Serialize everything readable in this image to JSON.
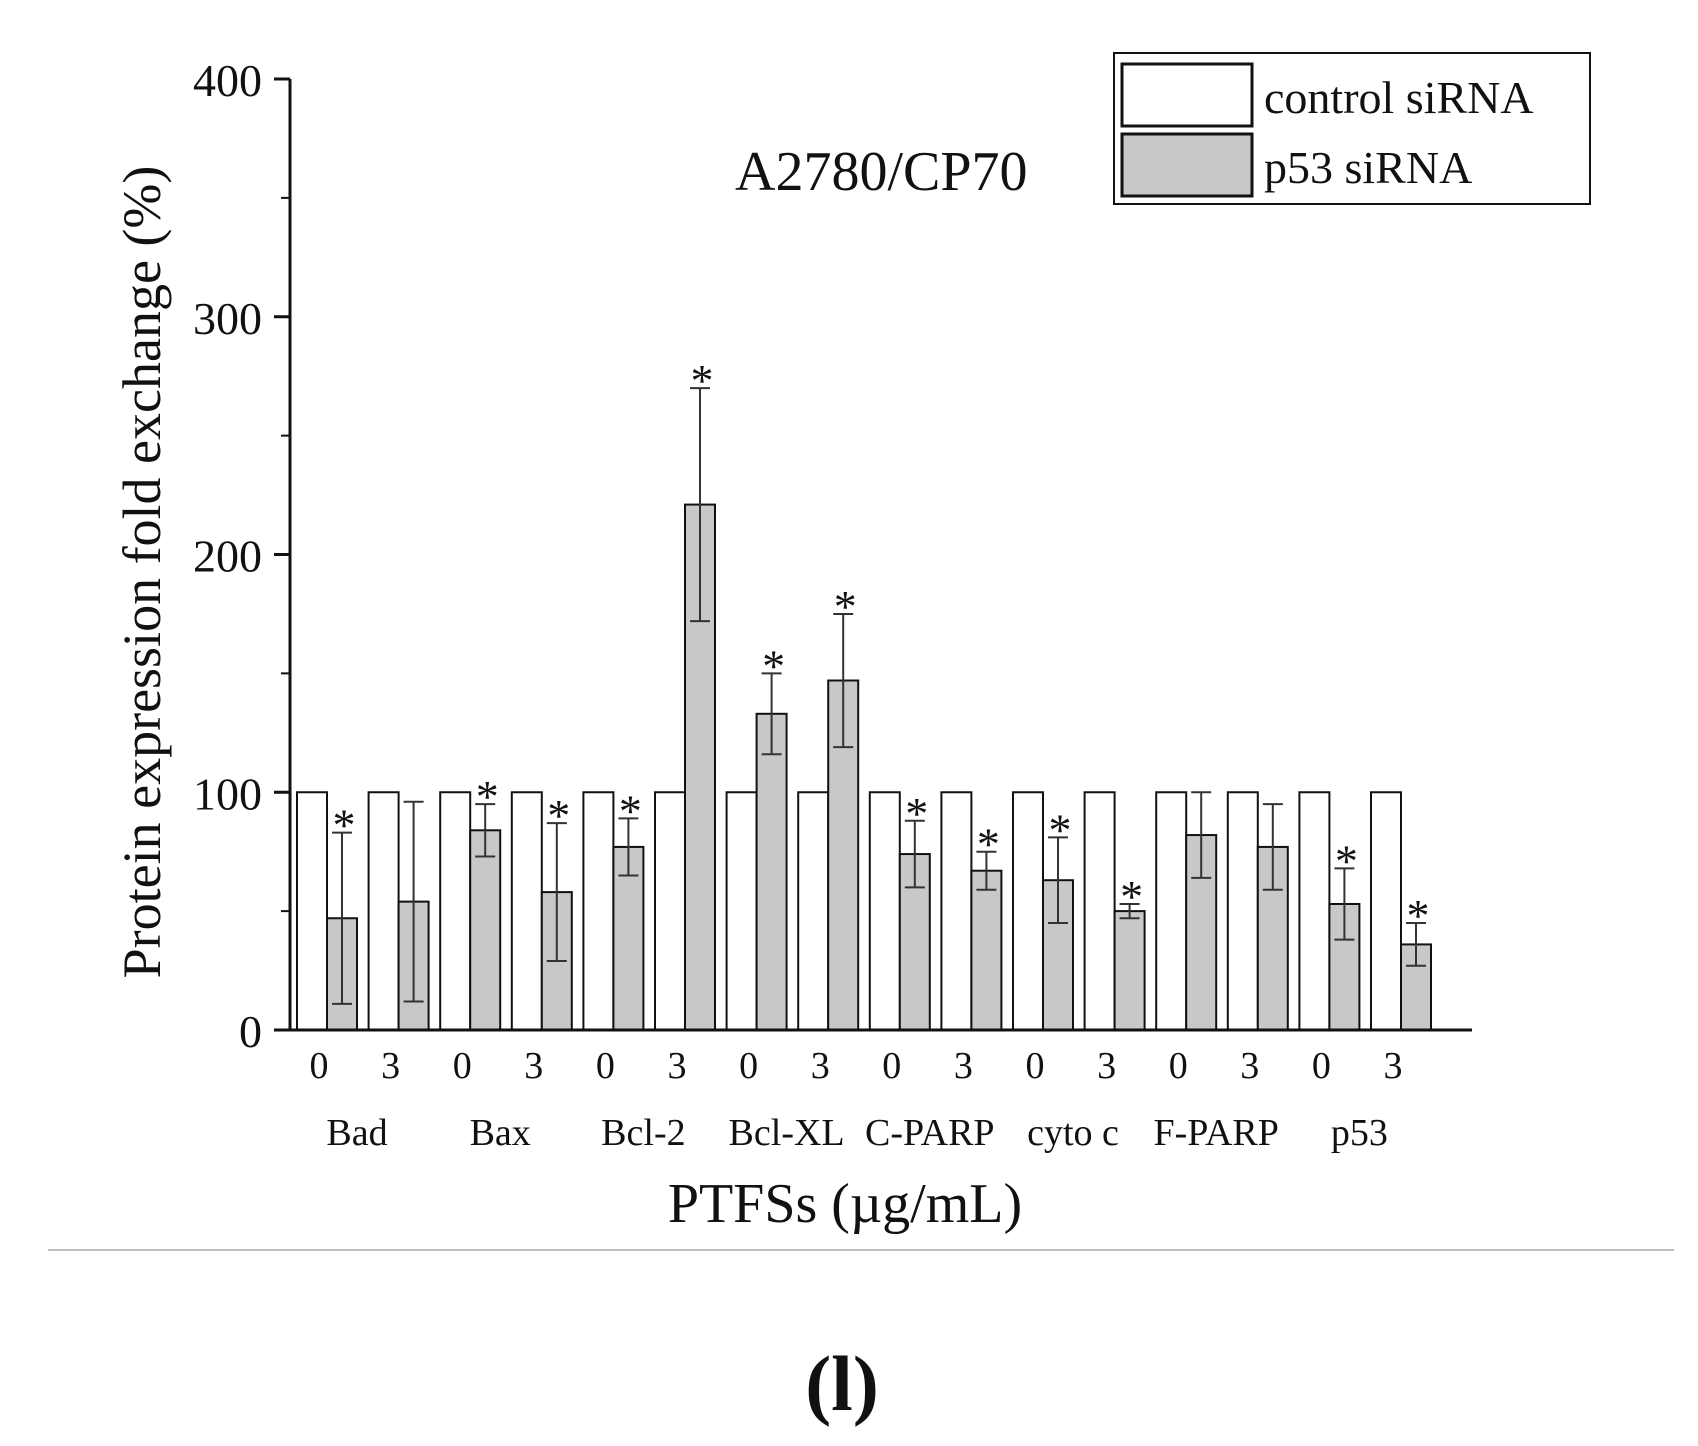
{
  "panel_label": "(l)",
  "chart_data": {
    "type": "bar",
    "inset_title": "A2780/CP70",
    "xlabel": "PTFSs (µg/mL)",
    "ylabel": "Protein expression fold exchange (%)",
    "ylim": [
      0,
      400
    ],
    "yticks": [
      0,
      100,
      200,
      300,
      400
    ],
    "legend_position": "top-right",
    "groups": [
      "Bad",
      "Bax",
      "Bcl-2",
      "Bcl-XL",
      "C-PARP",
      "cyto c",
      "F-PARP",
      "p53"
    ],
    "doses": [
      "0",
      "3"
    ],
    "categories": [
      {
        "group": "Bad",
        "dose": "0"
      },
      {
        "group": "Bad",
        "dose": "3"
      },
      {
        "group": "Bax",
        "dose": "0"
      },
      {
        "group": "Bax",
        "dose": "3"
      },
      {
        "group": "Bcl-2",
        "dose": "0"
      },
      {
        "group": "Bcl-2",
        "dose": "3"
      },
      {
        "group": "Bcl-XL",
        "dose": "0"
      },
      {
        "group": "Bcl-XL",
        "dose": "3"
      },
      {
        "group": "C-PARP",
        "dose": "0"
      },
      {
        "group": "C-PARP",
        "dose": "3"
      },
      {
        "group": "cyto c",
        "dose": "0"
      },
      {
        "group": "cyto c",
        "dose": "3"
      },
      {
        "group": "F-PARP",
        "dose": "0"
      },
      {
        "group": "F-PARP",
        "dose": "3"
      },
      {
        "group": "p53",
        "dose": "0"
      },
      {
        "group": "p53",
        "dose": "3"
      }
    ],
    "series": [
      {
        "name": "control siRNA",
        "color": "#ffffff",
        "values": [
          100,
          100,
          100,
          100,
          100,
          100,
          100,
          100,
          100,
          100,
          100,
          100,
          100,
          100,
          100,
          100
        ]
      },
      {
        "name": "p53 siRNA",
        "color": "#c8c8c8",
        "values": [
          47,
          54,
          84,
          58,
          77,
          221,
          133,
          147,
          74,
          67,
          63,
          50,
          82,
          77,
          53,
          36
        ],
        "errors": [
          36,
          42,
          11,
          29,
          12,
          49,
          17,
          28,
          14,
          8,
          18,
          3,
          18,
          18,
          15,
          9
        ],
        "significant": [
          true,
          false,
          true,
          true,
          true,
          true,
          true,
          true,
          true,
          true,
          true,
          true,
          false,
          false,
          true,
          true
        ]
      }
    ],
    "significance_marker": "*"
  }
}
